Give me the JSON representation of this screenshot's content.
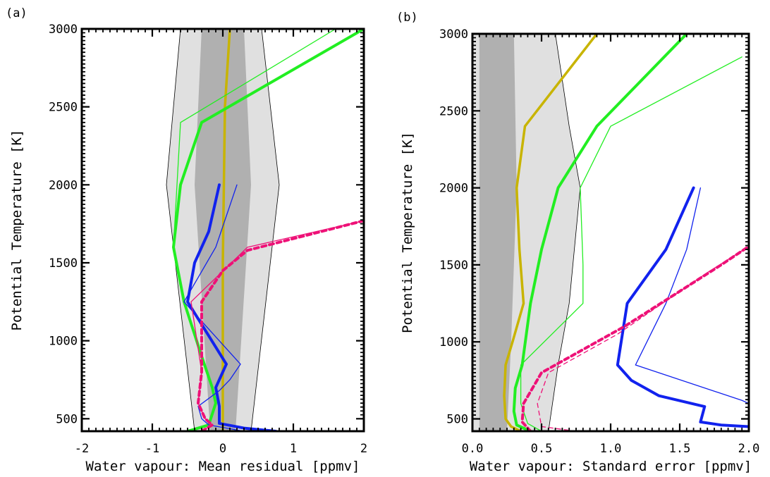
{
  "chart_data": [
    {
      "type": "line",
      "panel_label": "(a)",
      "xlabel": "Water vapour: Mean residual [ppmv]",
      "ylabel": "Potential Temperature [K]",
      "xlim": [
        -2,
        2
      ],
      "ylim": [
        420,
        3000
      ],
      "xticks": [
        -2,
        -1,
        0,
        1,
        2
      ],
      "xtick_labels": [
        "-2",
        "-1",
        "0",
        "1",
        "2"
      ],
      "yticks": [
        500,
        1000,
        1500,
        2000,
        2500,
        3000
      ],
      "ytick_labels": [
        "500",
        "1000",
        "1500",
        "2000",
        "2500",
        "3000"
      ],
      "bands": [
        {
          "color": "#e0e0e0",
          "outline": "#000000",
          "y": [
            420,
            2000,
            3000
          ],
          "lo": [
            -0.4,
            -0.8,
            -0.6
          ],
          "hi": [
            0.4,
            0.8,
            0.55
          ]
        },
        {
          "color": "#b0b0b0",
          "outline": "",
          "y": [
            420,
            2000,
            3000
          ],
          "lo": [
            -0.18,
            -0.4,
            -0.3
          ],
          "hi": [
            0.18,
            0.4,
            0.3
          ]
        }
      ],
      "series": [
        {
          "color": "#c8b400",
          "width": 3.5,
          "dash": false,
          "x": [
            0,
            0,
            0.03,
            0.1
          ],
          "y": [
            420,
            1500,
            2500,
            3000
          ]
        },
        {
          "color": "#22ee22",
          "width": 4,
          "dash": false,
          "x": [
            -0.5,
            -0.2,
            -0.1,
            -0.15,
            -0.3,
            -0.55,
            -0.7,
            -0.6,
            -0.3,
            2
          ],
          "y": [
            420,
            460,
            600,
            700,
            900,
            1250,
            1600,
            2000,
            2400,
            3000
          ]
        },
        {
          "color": "#22ee22",
          "width": 1.3,
          "dash": false,
          "x": [
            -0.5,
            -0.2,
            -0.1,
            -0.15,
            -0.3,
            -0.55,
            -0.7,
            -0.65,
            -0.6,
            1.6
          ],
          "y": [
            420,
            460,
            600,
            700,
            900,
            1250,
            1600,
            2000,
            2400,
            3000
          ]
        },
        {
          "color": "#1122ee",
          "width": 4,
          "dash": false,
          "x": [
            0.75,
            0.3,
            -0.05,
            -0.05,
            -0.1,
            0.05,
            -0.5,
            -0.4,
            -0.2,
            -0.05
          ],
          "y": [
            420,
            440,
            470,
            580,
            700,
            850,
            1250,
            1500,
            1700,
            2000
          ]
        },
        {
          "color": "#1122ee",
          "width": 1.3,
          "dash": false,
          "x": [
            0.3,
            -0.2,
            -0.3,
            -0.35,
            -0.05,
            0.1,
            0.25,
            -0.55,
            -0.1,
            0.2
          ],
          "y": [
            420,
            460,
            500,
            580,
            680,
            750,
            850,
            1250,
            1600,
            2000
          ]
        },
        {
          "color": "#ee1177",
          "width": 4,
          "dash": true,
          "x": [
            -0.3,
            -0.15,
            -0.25,
            -0.35,
            -0.3,
            -0.3,
            0,
            0.35,
            2
          ],
          "y": [
            420,
            460,
            500,
            600,
            800,
            1250,
            1450,
            1580,
            1770
          ]
        },
        {
          "color": "#ee1177",
          "width": 1.3,
          "dash": false,
          "x": [
            -0.3,
            -0.15,
            -0.25,
            -0.35,
            -0.3,
            -0.45,
            0.35,
            2
          ],
          "y": [
            420,
            460,
            500,
            600,
            800,
            1250,
            1600,
            1770
          ]
        }
      ]
    },
    {
      "type": "line",
      "panel_label": "(b)",
      "xlabel": "Water vapour: Standard error [ppmv]",
      "ylabel": "Potential Temperature [K]",
      "xlim": [
        0,
        2
      ],
      "ylim": [
        420,
        3000
      ],
      "xticks": [
        0,
        0.5,
        1,
        1.5,
        2
      ],
      "xtick_labels": [
        "0.0",
        "0.5",
        "1.0",
        "1.5",
        "2.0"
      ],
      "yticks": [
        500,
        1000,
        1500,
        2000,
        2500,
        3000
      ],
      "ytick_labels": [
        "500",
        "1000",
        "1500",
        "2000",
        "2500",
        "3000"
      ],
      "bands": [
        {
          "color": "#e0e0e0",
          "outline": "#000000",
          "y": [
            420,
            850,
            1250,
            2000,
            2400,
            3000
          ],
          "lo": [
            0,
            0,
            0,
            0,
            0,
            0
          ],
          "hi": [
            0.55,
            0.62,
            0.7,
            0.78,
            0.7,
            0.6
          ]
        },
        {
          "color": "#b0b0b0",
          "outline": "",
          "y": [
            420,
            1000,
            2000,
            3000
          ],
          "lo": [
            0.05,
            0.05,
            0.05,
            0.05
          ],
          "hi": [
            0.25,
            0.28,
            0.32,
            0.3
          ]
        }
      ],
      "series": [
        {
          "color": "#c8b400",
          "width": 3.5,
          "dash": false,
          "x": [
            0.35,
            0.28,
            0.24,
            0.23,
            0.24,
            0.29,
            0.37,
            0.34,
            0.32,
            0.38,
            0.9
          ],
          "y": [
            420,
            450,
            500,
            650,
            850,
            1000,
            1250,
            1600,
            2000,
            2400,
            3000
          ]
        },
        {
          "color": "#22ee22",
          "width": 4,
          "dash": false,
          "x": [
            0.42,
            0.32,
            0.3,
            0.31,
            0.36,
            0.42,
            0.5,
            0.62,
            0.9,
            1.55
          ],
          "y": [
            420,
            460,
            550,
            700,
            850,
            1250,
            1600,
            2000,
            2400,
            3000
          ]
        },
        {
          "color": "#22ee22",
          "width": 1.3,
          "dash": false,
          "x": [
            0.5,
            0.4,
            0.35,
            0.35,
            0.8,
            0.8,
            0.78,
            1.0,
            1.95
          ],
          "y": [
            420,
            470,
            600,
            850,
            1250,
            1500,
            2000,
            2400,
            2850
          ]
        },
        {
          "color": "#1122ee",
          "width": 4,
          "dash": false,
          "x": [
            2,
            1.8,
            1.65,
            1.68,
            1.35,
            1.15,
            1.05,
            1.12,
            1.4,
            1.6
          ],
          "y": [
            450,
            460,
            480,
            580,
            650,
            750,
            850,
            1250,
            1600,
            2000
          ]
        },
        {
          "color": "#1122ee",
          "width": 1.3,
          "dash": false,
          "x": [
            2,
            1.95,
            1.18,
            1.4,
            1.55,
            1.65
          ],
          "y": [
            600,
            620,
            850,
            1250,
            1600,
            2000
          ]
        },
        {
          "color": "#ee1177",
          "width": 4,
          "dash": true,
          "x": [
            0.42,
            0.36,
            0.37,
            0.5,
            1.1,
            1.8,
            2
          ],
          "y": [
            420,
            480,
            600,
            800,
            1100,
            1500,
            1620
          ]
        },
        {
          "color": "#ee1177",
          "width": 1.3,
          "dash": true,
          "x": [
            0.75,
            0.5,
            0.47,
            0.55,
            1.05,
            1.7,
            2
          ],
          "y": [
            420,
            450,
            600,
            800,
            1050,
            1450,
            1620
          ]
        }
      ]
    }
  ]
}
